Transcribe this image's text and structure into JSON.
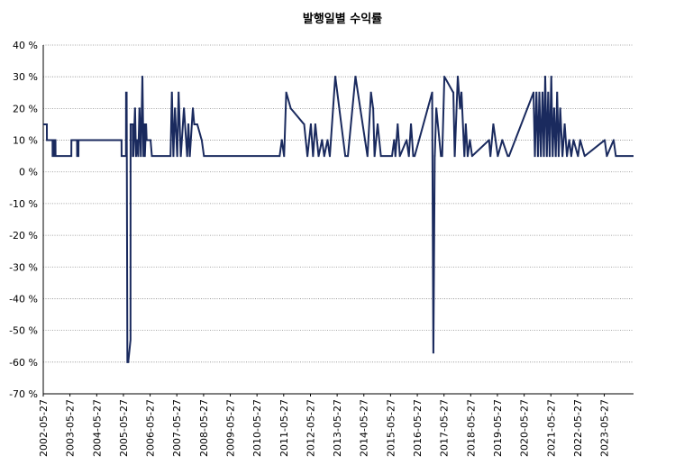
{
  "chart_data": {
    "type": "line",
    "title": "발행일별 수익률",
    "xlabel": "",
    "ylabel": "",
    "x_start": "2002-05-27",
    "x_end": "2024-06-30",
    "ylim": [
      -70,
      40
    ],
    "yticks": [
      40,
      30,
      20,
      10,
      0,
      -10,
      -20,
      -30,
      -40,
      -50,
      -60,
      -70
    ],
    "ytick_labels": [
      "40 %",
      "30 %",
      "20 %",
      "10 %",
      "0 %",
      "-10 %",
      "-20 %",
      "-30 %",
      "-40 %",
      "-50 %",
      "-60 %",
      "-70 %"
    ],
    "xtick_labels": [
      "2002-05-27",
      "2003-05-27",
      "2004-05-27",
      "2005-05-27",
      "2006-05-27",
      "2007-05-27",
      "2008-05-27",
      "2009-05-27",
      "2010-05-27",
      "2011-05-27",
      "2012-05-27",
      "2013-05-27",
      "2014-05-27",
      "2015-05-27",
      "2016-05-27",
      "2017-05-27",
      "2018-05-27",
      "2019-05-27",
      "2020-05-27",
      "2021-05-27",
      "2022-05-27",
      "2023-05-27"
    ],
    "grid": true,
    "line_color": "#1a2a5e",
    "series": [
      {
        "x": [
          "2002-05-27",
          "2002-07-15",
          "2002-07-16",
          "2002-10-01",
          "2002-10-02",
          "2002-10-20",
          "2002-10-21",
          "2002-11-10",
          "2002-11-11",
          "2002-12-01",
          "2002-12-02",
          "2003-06-15",
          "2003-06-16",
          "2003-09-01",
          "2003-09-02",
          "2003-09-20",
          "2003-09-21",
          "2005-05-01",
          "2005-05-02",
          "2005-07-01",
          "2005-07-02",
          "2005-07-10",
          "2005-07-20",
          "2005-08-01",
          "2005-09-01",
          "2005-09-02",
          "2005-10-01",
          "2005-10-02",
          "2005-10-10",
          "2005-11-01",
          "2005-11-02",
          "2005-11-15",
          "2005-11-16",
          "2005-12-01",
          "2005-12-02",
          "2005-12-15",
          "2005-12-16",
          "2006-01-01",
          "2006-01-02",
          "2006-01-20",
          "2006-01-21",
          "2006-02-10",
          "2006-02-11",
          "2006-02-25",
          "2006-02-26",
          "2006-03-10",
          "2006-03-11",
          "2006-03-15",
          "2006-03-16",
          "2006-04-01",
          "2006-04-02",
          "2006-04-10",
          "2006-04-11",
          "2006-06-01",
          "2006-06-02",
          "2006-06-20",
          "2006-06-21",
          "2006-07-10",
          "2006-07-11",
          "2007-03-01",
          "2007-03-02",
          "2007-03-20",
          "2007-03-21",
          "2007-04-10",
          "2007-04-11",
          "2007-05-01",
          "2007-05-02",
          "2007-06-01",
          "2007-06-02",
          "2007-06-20",
          "2007-06-21",
          "2007-07-20",
          "2007-07-21",
          "2007-09-01",
          "2007-09-02",
          "2007-10-15",
          "2007-10-16",
          "2007-11-01",
          "2007-11-02",
          "2007-11-20",
          "2007-11-21",
          "2008-01-01",
          "2008-01-02",
          "2008-01-20",
          "2008-01-21",
          "2008-03-01",
          "2008-03-02",
          "2008-05-01",
          "2008-05-02",
          "2008-06-01",
          "2008-06-02",
          "2008-09-01",
          "2008-09-02",
          "2010-12-01",
          "2010-12-02",
          "2011-02-01",
          "2011-02-02",
          "2011-04-01",
          "2011-04-02",
          "2011-05-01",
          "2011-05-02",
          "2011-06-01",
          "2011-06-02",
          "2011-07-01",
          "2011-07-02",
          "2011-09-01",
          "2011-09-02",
          "2012-03-01",
          "2012-03-02",
          "2012-04-15",
          "2012-04-16",
          "2012-06-01",
          "2012-06-02",
          "2012-07-01",
          "2012-07-02",
          "2012-08-01",
          "2012-08-02",
          "2012-09-15",
          "2012-09-16",
          "2012-11-01",
          "2012-11-02",
          "2012-12-01",
          "2012-12-02",
          "2013-01-15",
          "2013-01-16",
          "2013-02-15",
          "2013-02-16",
          "2013-05-01",
          "2013-05-02",
          "2013-09-15",
          "2013-09-16",
          "2013-10-20",
          "2013-10-21",
          "2014-02-01",
          "2014-02-02",
          "2014-07-15",
          "2014-07-16",
          "2014-09-01",
          "2014-09-02",
          "2014-10-01",
          "2014-10-02",
          "2014-10-20",
          "2014-10-21",
          "2014-12-01",
          "2014-12-02",
          "2015-01-15",
          "2015-01-16",
          "2015-06-15",
          "2015-06-16",
          "2015-07-15",
          "2015-07-16",
          "2015-08-01",
          "2015-08-02",
          "2015-09-01",
          "2015-09-02",
          "2015-10-01",
          "2015-10-02",
          "2016-01-01",
          "2016-01-02",
          "2016-02-01",
          "2016-02-02",
          "2016-03-01",
          "2016-03-02",
          "2016-04-01",
          "2016-04-02",
          "2016-04-20",
          "2016-04-21",
          "2016-12-15",
          "2016-12-16",
          "2017-01-01",
          "2017-01-02",
          "2017-01-20",
          "2017-01-21",
          "2017-02-10",
          "2017-02-11",
          "2017-04-15",
          "2017-04-16",
          "2017-05-01",
          "2017-05-02",
          "2017-06-01",
          "2017-06-02",
          "2017-10-01",
          "2017-10-02",
          "2017-10-20",
          "2017-10-21",
          "2017-12-01",
          "2017-12-02",
          "2018-01-01",
          "2018-01-02",
          "2018-01-20",
          "2018-01-21",
          "2018-03-01",
          "2018-03-02",
          "2018-03-20",
          "2018-03-21",
          "2018-04-15",
          "2018-04-16",
          "2018-05-15",
          "2018-05-16",
          "2018-06-15",
          "2018-06-16",
          "2019-02-01",
          "2019-02-02",
          "2019-02-20",
          "2019-02-21",
          "2019-04-01",
          "2019-04-02",
          "2019-06-01",
          "2019-06-02",
          "2019-08-01",
          "2019-08-02",
          "2019-10-15",
          "2019-10-16",
          "2019-11-01",
          "2019-11-02",
          "2020-10-01",
          "2020-10-02",
          "2020-10-20",
          "2020-10-21",
          "2020-11-10",
          "2020-11-11",
          "2020-12-01",
          "2020-12-02",
          "2020-12-20",
          "2020-12-21",
          "2021-01-10",
          "2021-01-11",
          "2021-02-01",
          "2021-02-02",
          "2021-02-20",
          "2021-02-21",
          "2021-03-10",
          "2021-03-11",
          "2021-04-01",
          "2021-04-02",
          "2021-04-20",
          "2021-04-21",
          "2021-05-10",
          "2021-05-11",
          "2021-06-01",
          "2021-06-02",
          "2021-06-20",
          "2021-06-21",
          "2021-07-10",
          "2021-07-11",
          "2021-08-01",
          "2021-08-02",
          "2021-08-20",
          "2021-08-21",
          "2021-09-10",
          "2021-09-11",
          "2021-10-01",
          "2021-10-02",
          "2021-11-01",
          "2021-11-02",
          "2021-12-01",
          "2021-12-02",
          "2022-01-01",
          "2022-01-02",
          "2022-02-01",
          "2022-02-02",
          "2022-03-01",
          "2022-03-02",
          "2022-04-01",
          "2022-04-02",
          "2022-06-01",
          "2022-06-02",
          "2022-07-01",
          "2022-07-02",
          "2022-09-01",
          "2022-09-02",
          "2023-06-01",
          "2023-06-02",
          "2023-07-01",
          "2023-07-02",
          "2023-10-01",
          "2023-10-02",
          "2023-11-01",
          "2023-11-02",
          "2024-06-30"
        ],
        "y": [
          15,
          15,
          10,
          10,
          5,
          5,
          10,
          10,
          5,
          5,
          5,
          5,
          10,
          10,
          5,
          5,
          10,
          10,
          5,
          5,
          25,
          25,
          -60,
          -60,
          -53,
          15,
          15,
          5,
          5,
          20,
          20,
          5,
          5,
          10,
          10,
          5,
          5,
          20,
          20,
          5,
          5,
          30,
          30,
          5,
          5,
          15,
          15,
          5,
          5,
          15,
          15,
          10,
          10,
          10,
          10,
          5,
          5,
          5,
          5,
          5,
          5,
          25,
          25,
          5,
          5,
          20,
          20,
          5,
          5,
          25,
          25,
          5,
          5,
          20,
          20,
          5,
          5,
          15,
          15,
          5,
          5,
          20,
          20,
          15,
          15,
          15,
          15,
          10,
          10,
          5,
          5,
          5,
          5,
          5,
          5,
          5,
          5,
          5,
          5,
          10,
          10,
          5,
          5,
          25,
          25,
          20,
          20,
          15,
          15,
          5,
          5,
          15,
          15,
          5,
          5,
          15,
          15,
          5,
          5,
          10,
          10,
          5,
          5,
          10,
          10,
          5,
          5,
          30,
          30,
          5,
          5,
          5,
          5,
          30,
          30,
          5,
          5,
          25,
          25,
          20,
          20,
          5,
          5,
          15,
          15,
          5,
          5,
          5,
          5,
          10,
          10,
          5,
          5,
          15,
          15,
          5,
          5,
          10,
          10,
          5,
          5,
          15,
          15,
          5,
          5,
          5,
          5,
          25,
          25,
          -57,
          -57,
          5,
          5,
          20,
          20,
          5,
          5,
          5,
          5,
          30,
          30,
          25,
          25,
          5,
          5,
          30,
          30,
          20,
          20,
          25,
          25,
          5,
          5,
          15,
          15,
          5,
          5,
          10,
          10,
          5,
          5,
          10,
          10,
          5,
          5,
          15,
          15,
          5,
          5,
          10,
          10,
          5,
          5,
          5,
          5,
          25,
          25,
          5,
          5,
          25,
          25,
          5,
          5,
          25,
          25,
          5,
          5,
          25,
          25,
          5,
          5,
          30,
          30,
          5,
          5,
          25,
          25,
          5,
          5,
          30,
          30,
          5,
          5,
          20,
          20,
          5,
          5,
          25,
          25,
          5,
          5,
          20,
          20,
          5,
          5,
          15,
          15,
          5,
          5,
          10,
          10,
          5,
          5,
          10,
          10,
          5,
          5,
          10,
          10,
          5,
          5,
          10,
          10,
          5,
          5,
          10,
          10,
          5,
          5,
          5
        ]
      }
    ]
  }
}
